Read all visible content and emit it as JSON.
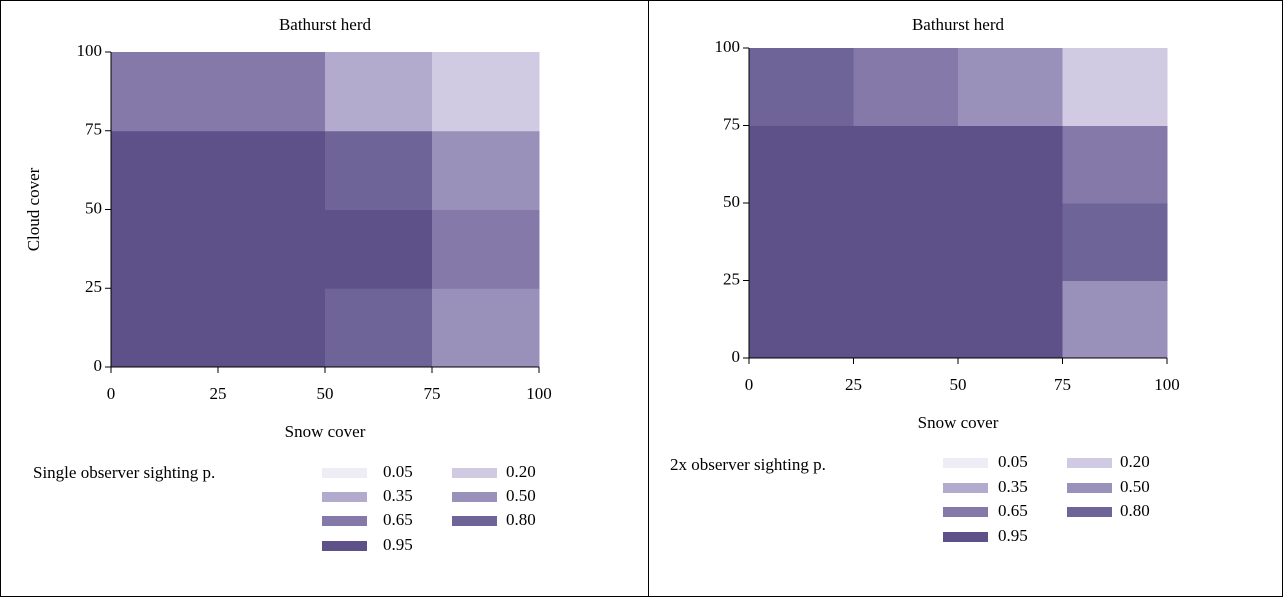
{
  "chart_data": [
    {
      "type": "heatmap",
      "title": "Bathurst herd",
      "x_label": "Snow cover",
      "y_label": "Cloud cover",
      "xlim": [
        0,
        100
      ],
      "ylim": [
        0,
        100
      ],
      "xticks": [
        0,
        25,
        50,
        75,
        100
      ],
      "yticks": [
        0,
        25,
        50,
        75,
        100
      ],
      "x_bins": [
        0,
        25,
        50,
        75,
        100
      ],
      "y_bins": [
        0,
        25,
        50,
        75,
        100
      ],
      "values": [
        [
          0.95,
          0.95,
          0.8,
          0.5
        ],
        [
          0.95,
          0.95,
          0.95,
          0.65
        ],
        [
          0.95,
          0.95,
          0.8,
          0.5
        ],
        [
          0.65,
          0.65,
          0.35,
          0.2
        ]
      ],
      "legend": {
        "title": "Single observer sighting p.",
        "levels": [
          {
            "value": 0.05,
            "label": "0.05",
            "color": "#eeecf5"
          },
          {
            "value": 0.2,
            "label": "0.20",
            "color": "#d0cbe2"
          },
          {
            "value": 0.35,
            "label": "0.35",
            "color": "#b2abcd"
          },
          {
            "value": 0.5,
            "label": "0.50",
            "color": "#9a91bb"
          },
          {
            "value": 0.65,
            "label": "0.65",
            "color": "#8479a9"
          },
          {
            "value": 0.8,
            "label": "0.80",
            "color": "#6e6497"
          },
          {
            "value": 0.95,
            "label": "0.95",
            "color": "#5e5189"
          }
        ]
      }
    },
    {
      "type": "heatmap",
      "title": "Bathurst herd",
      "x_label": "Snow cover",
      "xlim": [
        0,
        100
      ],
      "ylim": [
        0,
        100
      ],
      "xticks": [
        0,
        25,
        50,
        75,
        100
      ],
      "yticks": [
        0,
        25,
        50,
        75,
        100
      ],
      "x_bins": [
        0,
        25,
        50,
        75,
        100
      ],
      "y_bins": [
        0,
        25,
        50,
        75,
        100
      ],
      "values": [
        [
          0.95,
          0.95,
          0.95,
          0.5
        ],
        [
          0.95,
          0.95,
          0.95,
          0.8
        ],
        [
          0.95,
          0.95,
          0.95,
          0.65
        ],
        [
          0.8,
          0.65,
          0.5,
          0.2
        ]
      ],
      "legend": {
        "title": "2x observer sighting p.",
        "levels": [
          {
            "value": 0.05,
            "label": "0.05",
            "color": "#eeecf5"
          },
          {
            "value": 0.2,
            "label": "0.20",
            "color": "#d0cbe2"
          },
          {
            "value": 0.35,
            "label": "0.35",
            "color": "#b2abcd"
          },
          {
            "value": 0.5,
            "label": "0.50",
            "color": "#9a91bb"
          },
          {
            "value": 0.65,
            "label": "0.65",
            "color": "#8479a9"
          },
          {
            "value": 0.8,
            "label": "0.80",
            "color": "#6e6497"
          },
          {
            "value": 0.95,
            "label": "0.95",
            "color": "#5e5189"
          }
        ]
      }
    }
  ]
}
